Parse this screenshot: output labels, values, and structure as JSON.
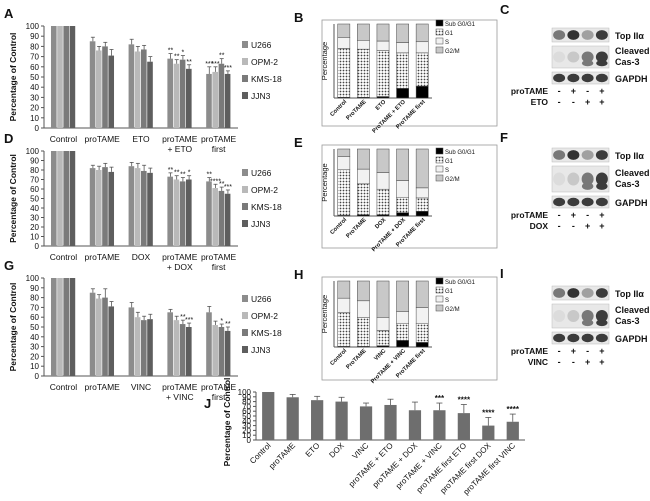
{
  "chart_data": [
    {
      "id": "A",
      "panel_label": "A",
      "type": "bar",
      "ylabel": "Percentage of Control",
      "ylim": [
        0,
        100
      ],
      "yticks": [
        0,
        10,
        20,
        30,
        40,
        50,
        60,
        70,
        80,
        90,
        100
      ],
      "categories": [
        "Control",
        "proTAME",
        "ETO",
        "proTAME\n+ ETO",
        "proTAME\nfirst"
      ],
      "legend": [
        "U266",
        "OPM-2",
        "KMS-18",
        "JJN3"
      ],
      "series": [
        {
          "name": "U266",
          "values": [
            100,
            85,
            82,
            68,
            53
          ],
          "errors": [
            0,
            4,
            5,
            5,
            7
          ]
        },
        {
          "name": "OPM-2",
          "values": [
            100,
            76,
            75,
            63,
            55
          ],
          "errors": [
            0,
            4,
            5,
            4,
            5
          ]
        },
        {
          "name": "KMS-18",
          "values": [
            100,
            80,
            77,
            67,
            63
          ],
          "errors": [
            0,
            4,
            4,
            4,
            5
          ]
        },
        {
          "name": "JJN3",
          "values": [
            100,
            71,
            65,
            58,
            53
          ],
          "errors": [
            0,
            6,
            5,
            4,
            3
          ]
        }
      ],
      "annotations": [
        {
          "category": 3,
          "series": 0,
          "text": "**"
        },
        {
          "category": 3,
          "series": 1,
          "text": "**"
        },
        {
          "category": 3,
          "series": 2,
          "text": "*"
        },
        {
          "category": 3,
          "series": 3,
          "text": "**"
        },
        {
          "category": 4,
          "series": 0,
          "text": "***"
        },
        {
          "category": 4,
          "series": 1,
          "text": "***"
        },
        {
          "category": 4,
          "series": 2,
          "text": "**"
        },
        {
          "category": 4,
          "series": 3,
          "text": "***"
        }
      ]
    },
    {
      "id": "D",
      "panel_label": "D",
      "type": "bar",
      "ylabel": "Percentage of Control",
      "ylim": [
        0,
        100
      ],
      "yticks": [
        0,
        10,
        20,
        30,
        40,
        50,
        60,
        70,
        80,
        90,
        100
      ],
      "categories": [
        "Control",
        "proTAME",
        "DOX",
        "proTAME\n+ DOX",
        "proTAME\nfirst"
      ],
      "legend": [
        "U266",
        "OPM-2",
        "KMS-18",
        "JJN3"
      ],
      "series": [
        {
          "name": "U266",
          "values": [
            100,
            82,
            84,
            73,
            68
          ],
          "errors": [
            0,
            3,
            4,
            4,
            4
          ]
        },
        {
          "name": "OPM-2",
          "values": [
            100,
            80,
            82,
            70,
            61
          ],
          "errors": [
            0,
            4,
            5,
            4,
            4
          ]
        },
        {
          "name": "KMS-18",
          "values": [
            100,
            83,
            79,
            68,
            58
          ],
          "errors": [
            0,
            4,
            6,
            4,
            4
          ]
        },
        {
          "name": "JJN3",
          "values": [
            100,
            78,
            77,
            70,
            55
          ],
          "errors": [
            0,
            5,
            5,
            4,
            4
          ]
        }
      ],
      "annotations": [
        {
          "category": 3,
          "series": 0,
          "text": "**"
        },
        {
          "category": 3,
          "series": 1,
          "text": "**"
        },
        {
          "category": 3,
          "series": 2,
          "text": "**"
        },
        {
          "category": 3,
          "series": 3,
          "text": "*"
        },
        {
          "category": 4,
          "series": 0,
          "text": "**"
        },
        {
          "category": 4,
          "series": 1,
          "text": "****"
        },
        {
          "category": 4,
          "series": 2,
          "text": "**"
        },
        {
          "category": 4,
          "series": 3,
          "text": "***"
        }
      ]
    },
    {
      "id": "G",
      "panel_label": "G",
      "type": "bar",
      "ylabel": "Percentage of Control",
      "ylim": [
        0,
        100
      ],
      "yticks": [
        0,
        10,
        20,
        30,
        40,
        50,
        60,
        70,
        80,
        90,
        100
      ],
      "categories": [
        "Control",
        "proTAME",
        "VINC",
        "proTAME\n+ VINC",
        "proTAME\nfirst"
      ],
      "legend": [
        "U266",
        "OPM-2",
        "KMS-18",
        "JJN3"
      ],
      "series": [
        {
          "name": "U266",
          "values": [
            100,
            85,
            70,
            65,
            65
          ],
          "errors": [
            0,
            4,
            5,
            3,
            6
          ]
        },
        {
          "name": "OPM-2",
          "values": [
            100,
            79,
            60,
            57,
            52
          ],
          "errors": [
            0,
            4,
            5,
            4,
            4
          ]
        },
        {
          "name": "KMS-18",
          "values": [
            100,
            80,
            57,
            53,
            50
          ],
          "errors": [
            0,
            9,
            4,
            4,
            3
          ]
        },
        {
          "name": "JJN3",
          "values": [
            100,
            71,
            58,
            50,
            46
          ],
          "errors": [
            0,
            5,
            5,
            4,
            4
          ]
        }
      ],
      "annotations": [
        {
          "category": 3,
          "series": 2,
          "text": "**"
        },
        {
          "category": 3,
          "series": 3,
          "text": "***"
        },
        {
          "category": 4,
          "series": 2,
          "text": "*"
        },
        {
          "category": 4,
          "series": 3,
          "text": "**"
        }
      ]
    },
    {
      "id": "B",
      "panel_label": "B",
      "type": "stacked-bar",
      "ylabel": "Percentage",
      "ylim": [
        0,
        100
      ],
      "categories": [
        "Control",
        "ProTAME",
        "ETO",
        "ProTAME + ETO",
        "ProTAME first"
      ],
      "legend": [
        "Sub G0/G1",
        "G1",
        "S",
        "G2/M"
      ],
      "series": [
        {
          "name": "Sub G0/G1",
          "values": [
            1,
            1,
            2,
            13,
            16
          ]
        },
        {
          "name": "G1",
          "values": [
            66,
            65,
            62,
            48,
            45
          ]
        },
        {
          "name": "S",
          "values": [
            15,
            12,
            13,
            14,
            15
          ]
        },
        {
          "name": "G2/M",
          "values": [
            18,
            22,
            23,
            25,
            24
          ]
        }
      ]
    },
    {
      "id": "E",
      "panel_label": "E",
      "type": "stacked-bar",
      "ylabel": "Percentage",
      "ylim": [
        0,
        100
      ],
      "categories": [
        "Control",
        "ProTAME",
        "DOX",
        "ProTAME + DOX",
        "ProTAME first"
      ],
      "legend": [
        "Sub G0/G1",
        "G1",
        "S",
        "G2/M"
      ],
      "series": [
        {
          "name": "Sub G0/G1",
          "values": [
            1,
            2,
            2,
            5,
            7
          ]
        },
        {
          "name": "G1",
          "values": [
            68,
            46,
            38,
            23,
            20
          ]
        },
        {
          "name": "S",
          "values": [
            20,
            22,
            25,
            25,
            15
          ]
        },
        {
          "name": "G2/M",
          "values": [
            11,
            30,
            35,
            47,
            58
          ]
        }
      ]
    },
    {
      "id": "H",
      "panel_label": "H",
      "type": "stacked-bar",
      "ylabel": "Percentage",
      "ylim": [
        0,
        100
      ],
      "categories": [
        "Control",
        "ProTAME",
        "VINC",
        "ProTAME + VINC",
        "ProTAME first"
      ],
      "legend": [
        "Sub G0/G1",
        "G1",
        "S",
        "G2/M"
      ],
      "series": [
        {
          "name": "Sub G0/G1",
          "values": [
            1,
            1,
            2,
            10,
            7
          ]
        },
        {
          "name": "G1",
          "values": [
            51,
            44,
            23,
            26,
            29
          ]
        },
        {
          "name": "S",
          "values": [
            22,
            25,
            20,
            18,
            24
          ]
        },
        {
          "name": "G2/M",
          "values": [
            26,
            30,
            55,
            46,
            40
          ]
        }
      ]
    },
    {
      "id": "J",
      "panel_label": "J",
      "type": "bar",
      "ylabel": "Percentage of Control",
      "ylim": [
        0,
        100
      ],
      "yticks": [
        0,
        10,
        20,
        30,
        40,
        50,
        60,
        70,
        80,
        90,
        100
      ],
      "categories": [
        "Control",
        "proTAME",
        "ETO",
        "DOX",
        "VINC",
        "proTAME + ETO",
        "proTAME + DOX",
        "proTAME + VINC",
        "proTAME first ETO",
        "proTAME first DOX",
        "proTAME first VINC"
      ],
      "values": [
        100,
        89,
        83,
        80,
        70,
        73,
        62,
        62,
        56,
        30,
        38
      ],
      "errors": [
        0,
        6,
        8,
        9,
        7,
        12,
        17,
        15,
        18,
        17,
        16
      ],
      "annotations": [
        {
          "category": 7,
          "text": "***"
        },
        {
          "category": 8,
          "text": "****"
        },
        {
          "category": 9,
          "text": "****"
        },
        {
          "category": 10,
          "text": "****"
        }
      ]
    }
  ],
  "blots": [
    {
      "id": "C",
      "panel_label": "C",
      "proteins": [
        "Top IIα",
        "Cleaved\nCas-3",
        "GAPDH"
      ],
      "treatments": [
        {
          "name": "proTAME",
          "marks": [
            "-",
            "+",
            "-",
            "+"
          ]
        },
        {
          "name": "ETO",
          "marks": [
            "-",
            "-",
            "+",
            "+"
          ]
        }
      ]
    },
    {
      "id": "F",
      "panel_label": "F",
      "proteins": [
        "Top IIα",
        "Cleaved\nCas-3",
        "GAPDH"
      ],
      "treatments": [
        {
          "name": "proTAME",
          "marks": [
            "-",
            "+",
            "-",
            "+"
          ]
        },
        {
          "name": "DOX",
          "marks": [
            "-",
            "-",
            "+",
            "+"
          ]
        }
      ]
    },
    {
      "id": "I",
      "panel_label": "I",
      "proteins": [
        "Top IIα",
        "Cleaved\nCas-3",
        "GAPDH"
      ],
      "treatments": [
        {
          "name": "proTAME",
          "marks": [
            "-",
            "+",
            "-",
            "+"
          ]
        },
        {
          "name": "VINC",
          "marks": [
            "-",
            "-",
            "+",
            "+"
          ]
        }
      ]
    }
  ],
  "colors": {
    "series": [
      "#8c8c8c",
      "#b9b9b9",
      "#7a7a7a",
      "#5e5e5e"
    ],
    "stack": [
      "#000000",
      "#ffffff",
      "#f2f2f2",
      "#c8c8c8"
    ],
    "single_bar": "#6e6e6e",
    "axis": "#555555",
    "text": "#111111"
  }
}
